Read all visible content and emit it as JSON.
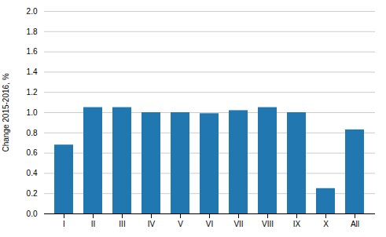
{
  "chart_data": {
    "type": "bar",
    "categories": [
      "I",
      "II",
      "III",
      "IV",
      "V",
      "VI",
      "VII",
      "VIII",
      "IX",
      "X",
      "All"
    ],
    "values": [
      0.68,
      1.05,
      1.05,
      1.0,
      1.0,
      0.99,
      1.02,
      1.05,
      1.0,
      0.25,
      0.83
    ],
    "color": "#2177b0",
    "ylabel": "Change 2015-2016, %",
    "ylim": [
      0.0,
      2.0
    ],
    "yticks": [
      {
        "value": 0.0,
        "label": "0.0"
      },
      0.2,
      0.4,
      0.6,
      0.8,
      {
        "value": 1.0,
        "label": "1.0"
      },
      1.2,
      1.4,
      1.6,
      1.8,
      {
        "value": 2.0,
        "label": "2.0"
      }
    ],
    "grid": true
  }
}
